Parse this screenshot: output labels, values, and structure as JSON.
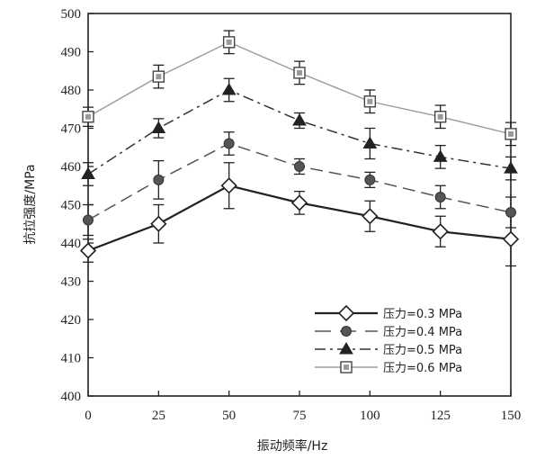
{
  "chart_data": {
    "type": "line",
    "x": [
      0,
      25,
      50,
      75,
      100,
      125,
      150
    ],
    "xlabel": "振动频率/Hz",
    "ylabel": "抗拉强度/MPa",
    "xlim": [
      0,
      150
    ],
    "ylim": [
      400,
      500
    ],
    "x_ticks": [
      "0",
      "25",
      "50",
      "75",
      "100",
      "125",
      "150"
    ],
    "y_ticks": [
      "400",
      "410",
      "420",
      "430",
      "440",
      "450",
      "460",
      "470",
      "480",
      "490",
      "500"
    ],
    "grid": false,
    "legend_position": "bottom-right",
    "series": [
      {
        "name": "压力=0.3 MPa",
        "marker": "diamond",
        "line_style": "solid",
        "color": "#222222",
        "values": [
          438,
          445,
          455,
          450.5,
          447,
          443,
          441
        ],
        "error": [
          3,
          5,
          6,
          3,
          4,
          4,
          7
        ]
      },
      {
        "name": "压力=0.4 MPa",
        "marker": "circle",
        "line_style": "dashed",
        "color": "#555555",
        "values": [
          446,
          456.5,
          466,
          460,
          456.5,
          452,
          448
        ],
        "error": [
          4,
          5,
          3,
          2,
          2,
          3,
          4
        ]
      },
      {
        "name": "压力=0.5 MPa",
        "marker": "triangle",
        "line_style": "dashdot",
        "color": "#333333",
        "values": [
          458,
          470,
          480,
          472,
          466,
          462.5,
          459.5
        ],
        "error": [
          3,
          2.5,
          3,
          2,
          4,
          3,
          3
        ]
      },
      {
        "name": "压力=0.6 MPa",
        "marker": "square",
        "line_style": "solid-light",
        "color": "#9a9a9a",
        "values": [
          473,
          483.5,
          492.5,
          484.5,
          477,
          473,
          468.5
        ],
        "error": [
          2.5,
          3,
          3,
          3,
          3,
          3,
          3
        ]
      }
    ]
  }
}
